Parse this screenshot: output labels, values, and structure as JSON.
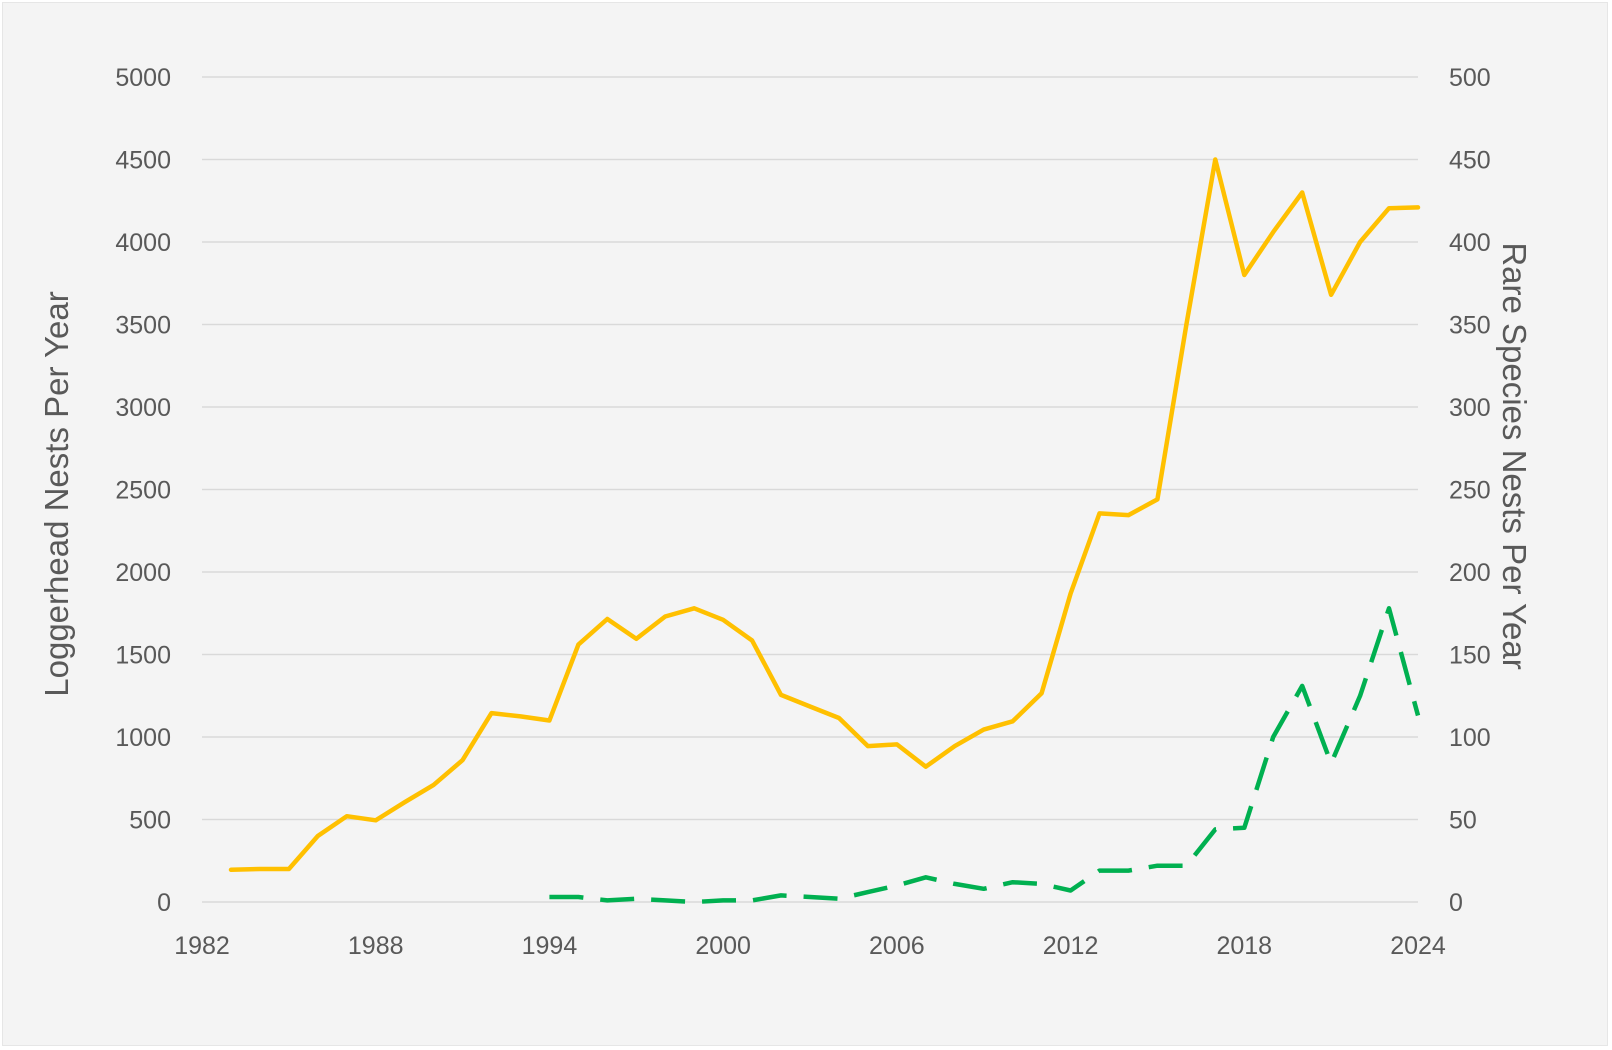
{
  "chart_data": {
    "type": "line",
    "title": "",
    "xlabel": "",
    "ylabel": "Loggerhead Nests Per Year",
    "y2label": "Rare Species Nests Per Year",
    "xlim": [
      1982,
      2024
    ],
    "ylim": [
      0,
      5000
    ],
    "y2lim": [
      0,
      500
    ],
    "x_ticks": [
      1982,
      1988,
      1994,
      2000,
      2006,
      2012,
      2018,
      2024
    ],
    "y_ticks": [
      0,
      500,
      1000,
      1500,
      2000,
      2500,
      3000,
      3500,
      4000,
      4500,
      5000
    ],
    "y2_ticks": [
      0,
      50,
      100,
      150,
      200,
      250,
      300,
      350,
      400,
      450,
      500
    ],
    "grid": true,
    "series": [
      {
        "name": "Loggerhead",
        "axis": "left",
        "color": "#ffc000",
        "style": "solid",
        "x": [
          1983,
          1984,
          1985,
          1986,
          1987,
          1988,
          1989,
          1990,
          1991,
          1992,
          1993,
          1994,
          1995,
          1996,
          1997,
          1998,
          1999,
          2000,
          2001,
          2002,
          2003,
          2004,
          2005,
          2006,
          2007,
          2008,
          2009,
          2010,
          2011,
          2012,
          2013,
          2014,
          2015,
          2016,
          2017,
          2018,
          2019,
          2020,
          2021,
          2022,
          2023,
          2024
        ],
        "values": [
          195,
          200,
          200,
          400,
          520,
          495,
          605,
          710,
          860,
          1145,
          1125,
          1100,
          1560,
          1715,
          1595,
          1730,
          1780,
          1710,
          1585,
          1255,
          1185,
          1115,
          945,
          955,
          820,
          945,
          1045,
          1095,
          1265,
          1870,
          2355,
          2345,
          2440,
          3500,
          4500,
          3800,
          4060,
          4300,
          3680,
          4000,
          4205,
          4210
        ]
      },
      {
        "name": "Rare Species",
        "axis": "right",
        "color": "#00b050",
        "style": "dashed",
        "x": [
          1994,
          1995,
          1996,
          1997,
          1998,
          1999,
          2000,
          2001,
          2002,
          2003,
          2004,
          2005,
          2006,
          2007,
          2008,
          2009,
          2010,
          2011,
          2012,
          2013,
          2014,
          2015,
          2016,
          2017,
          2018,
          2019,
          2020,
          2021,
          2022,
          2023,
          2024
        ],
        "values": [
          3,
          3,
          1,
          2,
          1,
          0,
          1,
          1,
          4,
          3,
          2,
          6,
          10,
          15,
          11,
          8,
          12,
          11,
          7,
          19,
          19,
          22,
          22,
          44,
          45,
          100,
          131,
          84,
          125,
          178,
          113
        ]
      }
    ]
  }
}
